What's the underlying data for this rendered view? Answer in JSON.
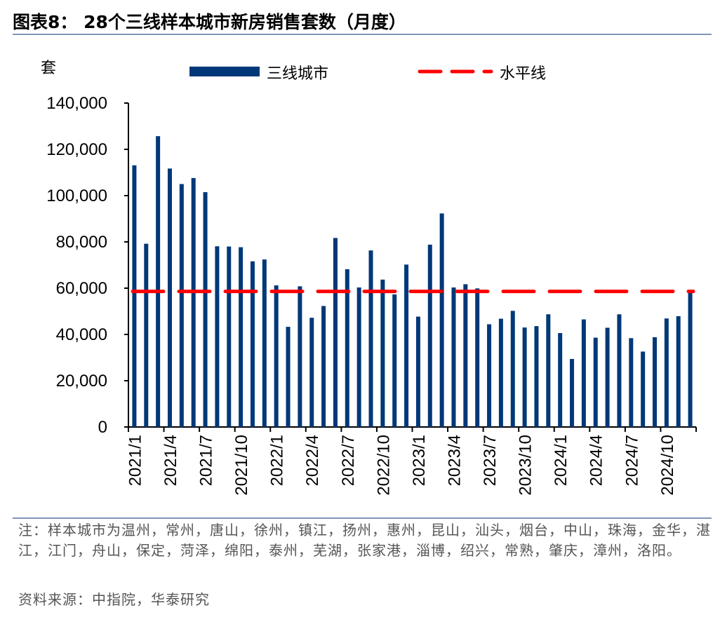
{
  "title": "图表8： 28个三线样本城市新房销售套数（月度）",
  "note": "注：样本城市为温州，常州，唐山，徐州，镇江，扬州，惠州，昆山，汕头，烟台，中山，珠海，金华，湛江，江门，舟山，保定，菏泽，绵阳，泰州，芜湖，张家港，淄博，绍兴，常熟，肇庆，漳州，洛阳。",
  "source": "资料来源：中指院，华泰研究",
  "chart_data": {
    "type": "bar",
    "title": "28个三线样本城市新房销售套数（月度）",
    "ylabel": "套",
    "ylim": [
      0,
      140000
    ],
    "yticks": [
      0,
      20000,
      40000,
      60000,
      80000,
      100000,
      120000,
      140000
    ],
    "ytick_labels": [
      "0",
      "20,000",
      "40,000",
      "60,000",
      "80,000",
      "100,000",
      "120,000",
      "140,000"
    ],
    "xtick_labels": [
      "2021/1",
      "2021/4",
      "2021/7",
      "2021/10",
      "2022/1",
      "2022/4",
      "2022/7",
      "2022/10",
      "2023/1",
      "2023/4",
      "2023/7",
      "2023/10",
      "2024/1",
      "2024/4",
      "2024/7",
      "2024/10"
    ],
    "legend": {
      "placement": "top",
      "bar_label": "三线城市",
      "line_label": "水平线"
    },
    "colors": {
      "bar": "#003878",
      "line": "#ff0000"
    },
    "series": [
      {
        "name": "三线城市",
        "type": "bar",
        "values": [
          113100,
          79200,
          125700,
          111700,
          105000,
          107600,
          101500,
          78100,
          78000,
          77700,
          71600,
          72400,
          61200,
          43300,
          60800,
          47200,
          52300,
          81700,
          68200,
          60300,
          76300,
          63700,
          57300,
          70200,
          47700,
          78800,
          92300,
          60300,
          61700,
          59900,
          44400,
          46800,
          50200,
          43000,
          43600,
          48700,
          40600,
          29400,
          46500,
          38600,
          42900,
          48700,
          38400,
          32600,
          38800,
          46900,
          47900,
          58700
        ]
      },
      {
        "name": "水平线",
        "type": "line",
        "value": 58600
      }
    ]
  }
}
